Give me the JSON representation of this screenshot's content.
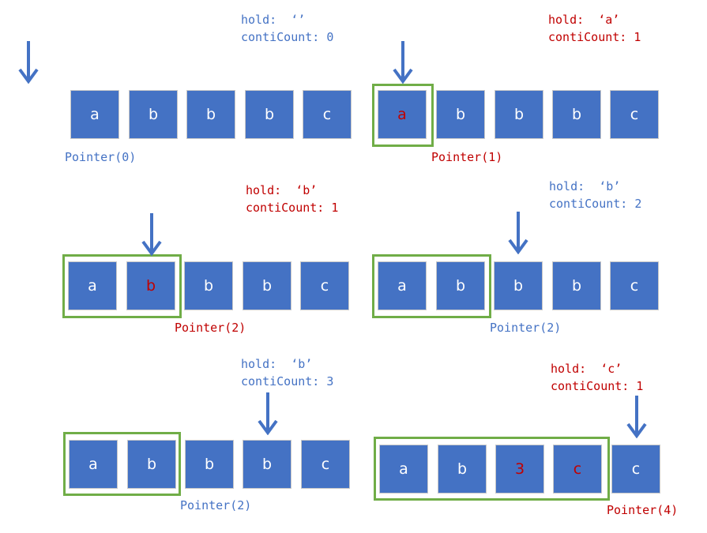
{
  "colors": {
    "cell": "#4472c4",
    "blue_text": "#4472c4",
    "red_text": "#c00000",
    "highlight_box": "#70ad47",
    "cell_text": "#ffffff"
  },
  "panels": [
    {
      "hold": "hold:  ‘’",
      "count": "contiCount: 0",
      "pointer": "Pointer(0)",
      "text_color": "blue",
      "cells": [
        {
          "v": "a",
          "c": "white"
        },
        {
          "v": "b",
          "c": "white"
        },
        {
          "v": "b",
          "c": "white"
        },
        {
          "v": "b",
          "c": "white"
        },
        {
          "v": "c",
          "c": "white"
        }
      ]
    },
    {
      "hold": "hold:  ‘a’",
      "count": "contiCount: 1",
      "pointer": "Pointer(1)",
      "text_color": "red",
      "cells": [
        {
          "v": "a",
          "c": "red"
        },
        {
          "v": "b",
          "c": "white"
        },
        {
          "v": "b",
          "c": "white"
        },
        {
          "v": "b",
          "c": "white"
        },
        {
          "v": "c",
          "c": "white"
        }
      ]
    },
    {
      "hold": "hold:  ‘b’",
      "count": "contiCount: 1",
      "pointer": "Pointer(2)",
      "text_color": "red",
      "cells": [
        {
          "v": "a",
          "c": "white"
        },
        {
          "v": "b",
          "c": "red"
        },
        {
          "v": "b",
          "c": "white"
        },
        {
          "v": "b",
          "c": "white"
        },
        {
          "v": "c",
          "c": "white"
        }
      ]
    },
    {
      "hold": "hold:  ‘b’",
      "count": "contiCount: 2",
      "pointer": "Pointer(2)",
      "text_color": "blue",
      "cells": [
        {
          "v": "a",
          "c": "white"
        },
        {
          "v": "b",
          "c": "white"
        },
        {
          "v": "b",
          "c": "white"
        },
        {
          "v": "b",
          "c": "white"
        },
        {
          "v": "c",
          "c": "white"
        }
      ]
    },
    {
      "hold": "hold:  ‘b’",
      "count": "contiCount: 3",
      "pointer": "Pointer(2)",
      "text_color": "blue",
      "cells": [
        {
          "v": "a",
          "c": "white"
        },
        {
          "v": "b",
          "c": "white"
        },
        {
          "v": "b",
          "c": "white"
        },
        {
          "v": "b",
          "c": "white"
        },
        {
          "v": "c",
          "c": "white"
        }
      ]
    },
    {
      "hold": "hold:  ‘c’",
      "count": "contiCount: 1",
      "pointer": "Pointer(4)",
      "text_color": "red",
      "cells": [
        {
          "v": "a",
          "c": "white"
        },
        {
          "v": "b",
          "c": "white"
        },
        {
          "v": "3",
          "c": "red"
        },
        {
          "v": "c",
          "c": "red"
        },
        {
          "v": "c",
          "c": "white"
        }
      ]
    }
  ]
}
